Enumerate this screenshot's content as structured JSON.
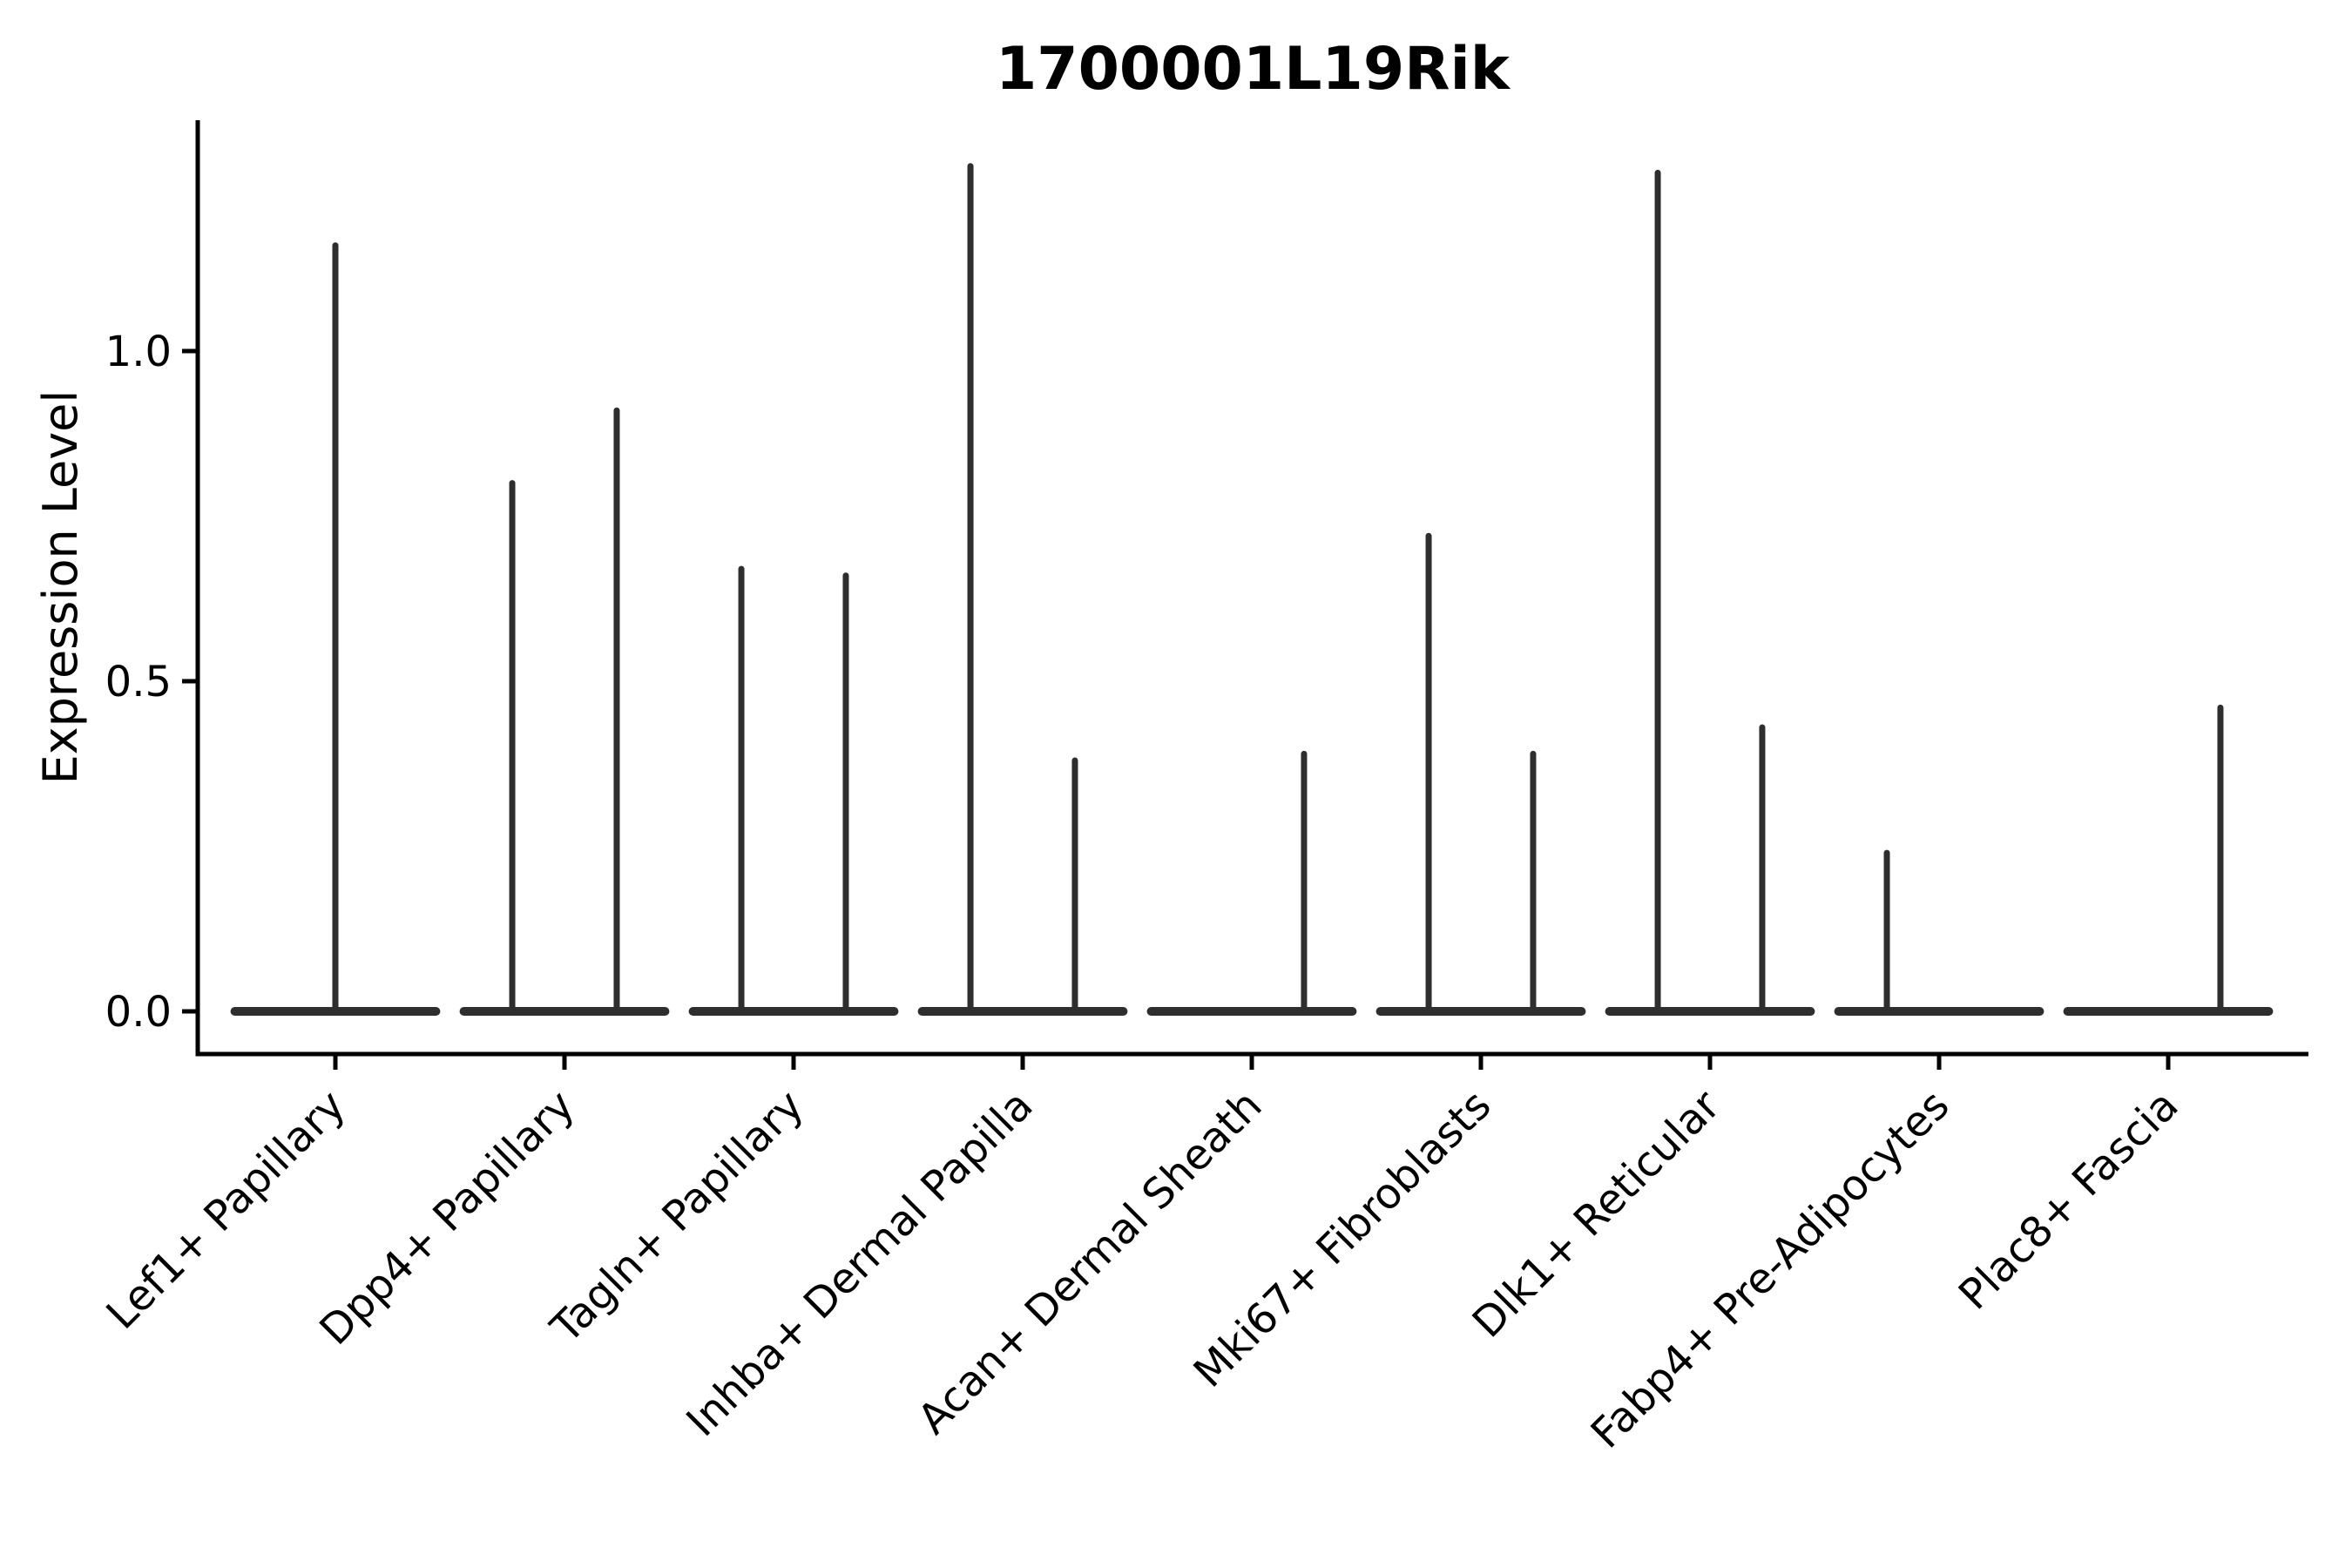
{
  "title": "1700001L19Rik",
  "axes": {
    "ylabel": "Expression Level",
    "xlabel": ""
  },
  "colors": {
    "foreground": "#000000",
    "violin": "#2e2e2e",
    "background": "#ffffff"
  },
  "chart_data": {
    "type": "violin",
    "title": "1700001L19Rik",
    "ylabel": "Expression Level",
    "xlabel": "",
    "legend": "none",
    "grid": false,
    "ylim": [
      -0.065,
      1.35
    ],
    "ytick_labels": [
      "0.0",
      "0.5",
      "1.0"
    ],
    "ytick_values": [
      0.0,
      0.5,
      1.0
    ],
    "categories": [
      "Lef1+ Papillary",
      "Dpp4+ Papillary",
      "Tagln+ Papillary",
      "Inhba+ Dermal Papilla",
      "Acan+ Dermal Sheath",
      "Mki67+ Fibroblasts",
      "Dlk1+ Reticular",
      "Fabp4+ Pre-Adipocytes",
      "Plac8+ Fascia"
    ],
    "description": "Violin plot of 1700001L19Rik expression per cluster. Each violin is collapsed to a flat bar at expression 0 (most cells do not express the gene) with thin vertical spikes reaching the maximum expression level of rare expressing cells. Spike offset is in category-width units relative to the category center; max is the expression level at the spike tip.",
    "base_halfwidth": 0.456,
    "violins": [
      {
        "category": "Lef1+ Papillary",
        "spikes": [
          {
            "offset": 0.0,
            "max": 1.16
          }
        ]
      },
      {
        "category": "Dpp4+ Papillary",
        "spikes": [
          {
            "offset": -0.228,
            "max": 0.8
          },
          {
            "offset": 0.228,
            "max": 0.91
          }
        ]
      },
      {
        "category": "Tagln+ Papillary",
        "spikes": [
          {
            "offset": -0.228,
            "max": 0.67
          },
          {
            "offset": 0.228,
            "max": 0.66
          }
        ]
      },
      {
        "category": "Inhba+ Dermal Papilla",
        "spikes": [
          {
            "offset": -0.228,
            "max": 1.28
          },
          {
            "offset": 0.228,
            "max": 0.38
          }
        ]
      },
      {
        "category": "Acan+ Dermal Sheath",
        "spikes": [
          {
            "offset": 0.228,
            "max": 0.39
          }
        ]
      },
      {
        "category": "Mki67+ Fibroblasts",
        "spikes": [
          {
            "offset": -0.228,
            "max": 0.72
          },
          {
            "offset": 0.228,
            "max": 0.39
          }
        ]
      },
      {
        "category": "Dlk1+ Reticular",
        "spikes": [
          {
            "offset": -0.228,
            "max": 1.27
          },
          {
            "offset": 0.228,
            "max": 0.43
          }
        ]
      },
      {
        "category": "Fabp4+ Pre-Adipocytes",
        "spikes": [
          {
            "offset": -0.228,
            "max": 0.24
          }
        ]
      },
      {
        "category": "Plac8+ Fascia",
        "spikes": [
          {
            "offset": 0.228,
            "max": 0.46
          }
        ]
      }
    ]
  }
}
